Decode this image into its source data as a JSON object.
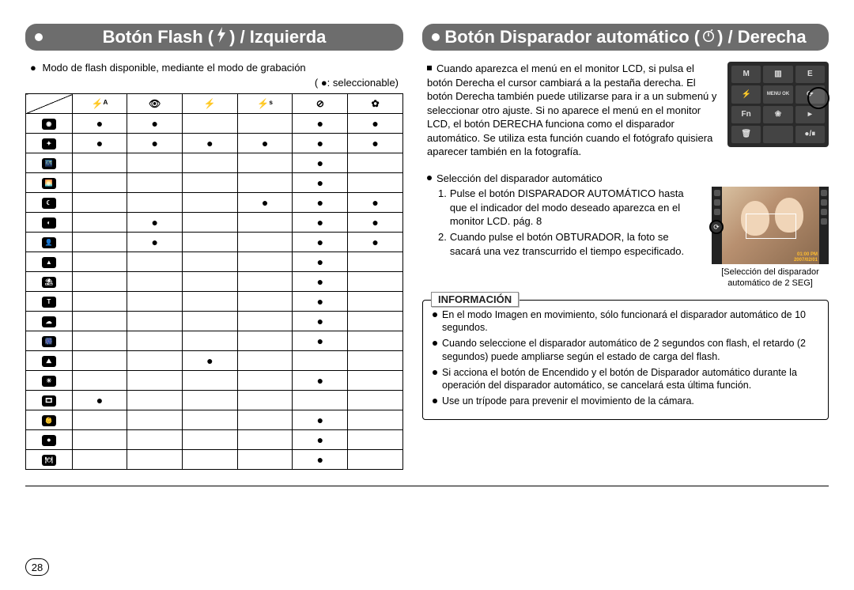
{
  "page_number": "28",
  "left": {
    "title_prefix": "Botón Flash (",
    "title_suffix": ") / Izquierda",
    "intro": "Modo de flash disponible, mediante el modo de grabación",
    "legend_prefix": "( ",
    "legend_bullet": "●",
    "legend_suffix": ": seleccionable)",
    "col_icons": [
      "⚡ᴬ",
      "👁",
      "⚡",
      "⚡ˢ",
      "⊘",
      "✿"
    ],
    "row_icons": [
      "◉",
      "✦",
      "🌃",
      "🌅",
      "☾",
      "◐",
      "👤",
      "▲",
      "⛱",
      "T",
      "☁",
      "🎆",
      "⛰",
      "☀",
      "🎞",
      "👶",
      "⏺",
      "🍽"
    ],
    "cells": [
      [
        1,
        1,
        0,
        0,
        1,
        1
      ],
      [
        1,
        1,
        1,
        1,
        1,
        1
      ],
      [
        0,
        0,
        0,
        0,
        1,
        0
      ],
      [
        0,
        0,
        0,
        0,
        1,
        0
      ],
      [
        0,
        0,
        0,
        1,
        1,
        1
      ],
      [
        0,
        1,
        0,
        0,
        1,
        1
      ],
      [
        0,
        1,
        0,
        0,
        1,
        1
      ],
      [
        0,
        0,
        0,
        0,
        1,
        0
      ],
      [
        0,
        0,
        0,
        0,
        1,
        0
      ],
      [
        0,
        0,
        0,
        0,
        1,
        0
      ],
      [
        0,
        0,
        0,
        0,
        1,
        0
      ],
      [
        0,
        0,
        0,
        0,
        1,
        0
      ],
      [
        0,
        0,
        1,
        0,
        0,
        0
      ],
      [
        0,
        0,
        0,
        0,
        1,
        0
      ],
      [
        1,
        0,
        0,
        0,
        0,
        0
      ],
      [
        0,
        0,
        0,
        0,
        1,
        0
      ],
      [
        0,
        0,
        0,
        0,
        1,
        0
      ],
      [
        0,
        0,
        0,
        0,
        1,
        0
      ]
    ]
  },
  "right": {
    "title_prefix": "Botón Disparador automático (",
    "title_suffix": ") / Derecha",
    "para1": "Cuando aparezca el menú en el monitor LCD, si pulsa el botón Derecha el cursor cambiará a la pestaña derecha. El botón Derecha también puede utilizarse para ir a un submenú y seleccionar otro ajuste. Si no aparece el menú en el monitor LCD, el botón DERECHA funciona como el disparador automático. Se utiliza esta función cuando el fotógrafo quisiera aparecer también en la fotografía.",
    "sel_heading": "Selección del disparador automático",
    "step1": "Pulse el botón DISPARADOR AUTOMÁTICO hasta que el indicador del modo deseado aparezca en el monitor LCD. pág. 8",
    "step2": "Cuando pulse el botón OBTURADOR, la foto se sacará una vez transcurrido el tiempo especificado.",
    "lcd_time1": "01:00 PM",
    "lcd_time2": "2007/02/01",
    "lcd_caption1": "[Selección del disparador",
    "lcd_caption2": "automático de 2 SEG]",
    "keypad": {
      "keys": [
        "M",
        "▥",
        "E",
        "⚡",
        "MENU OK",
        "⟳",
        "Fn",
        "❀",
        "▸",
        "🗑",
        "",
        "●/⏸"
      ]
    },
    "info_label": "INFORMACIÓN",
    "info_items": [
      "En el modo Imagen en movimiento, sólo funcionará el disparador automático de 10 segundos.",
      "Cuando seleccione el disparador automático de 2 segundos con flash, el retardo (2 segundos) puede ampliarse según el estado de carga del flash.",
      "Si acciona el botón de Encendido y el botón de Disparador automático durante la operación del disparador automático, se cancelará esta última función.",
      "Use un trípode para prevenir el movimiento de la cámara."
    ]
  },
  "colors": {
    "header_bg": "#6d6d6d",
    "header_fg": "#ffffff",
    "border": "#000000"
  }
}
